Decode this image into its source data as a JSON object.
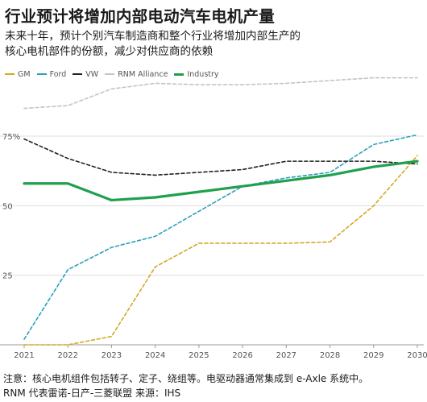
{
  "title": "行业预计将增加内部电动汽车电机产量",
  "subtitle": "未来十年，预计个别汽车制造商和整个行业将增加内部生产的\n核心电机部件的份额，减少对供应商的依赖",
  "notes": "注意：核心电机组件包括转子、定子、绕组等。电驱动器通常集成到 e-Axle 系统中。\nRNM 代表雷诺-日产-三菱联盟 来源：IHS",
  "chart_data": {
    "type": "line",
    "title": "行业预计将增加内部电动汽车电机产量",
    "xlabel": "",
    "ylabel": "",
    "x": [
      "2021",
      "2022",
      "2023",
      "2024",
      "2025",
      "2026",
      "2027",
      "2028",
      "2029",
      "2030"
    ],
    "ylim": [
      0,
      95
    ],
    "yticks": [
      {
        "value": 25,
        "label": "25"
      },
      {
        "value": 50,
        "label": "50"
      },
      {
        "value": 75,
        "label": "75%"
      }
    ],
    "grid": true,
    "legend_position": "top-left",
    "series": [
      {
        "name": "GM",
        "color": "#d4a823",
        "style": "dashed",
        "values": [
          0,
          0,
          3,
          28,
          36.5,
          36.5,
          36.5,
          37,
          50,
          68
        ]
      },
      {
        "name": "Ford",
        "color": "#2b9fbd",
        "style": "dashed",
        "values": [
          2,
          27,
          35,
          39,
          48,
          57,
          60,
          62,
          72,
          75.5
        ]
      },
      {
        "name": "VW",
        "color": "#222222",
        "style": "dashed",
        "values": [
          74,
          67,
          62,
          61,
          62,
          63,
          66,
          66,
          66,
          65
        ]
      },
      {
        "name": "RNM Alliance",
        "color": "#c4c4c4",
        "style": "dashed",
        "values": [
          85,
          86,
          92,
          94,
          93.5,
          93.5,
          94,
          95,
          96,
          96
        ]
      },
      {
        "name": "Industry",
        "color": "#1fa04c",
        "style": "solid",
        "values": [
          58,
          58,
          52,
          53,
          55,
          57,
          59,
          61,
          64,
          66
        ]
      }
    ]
  }
}
